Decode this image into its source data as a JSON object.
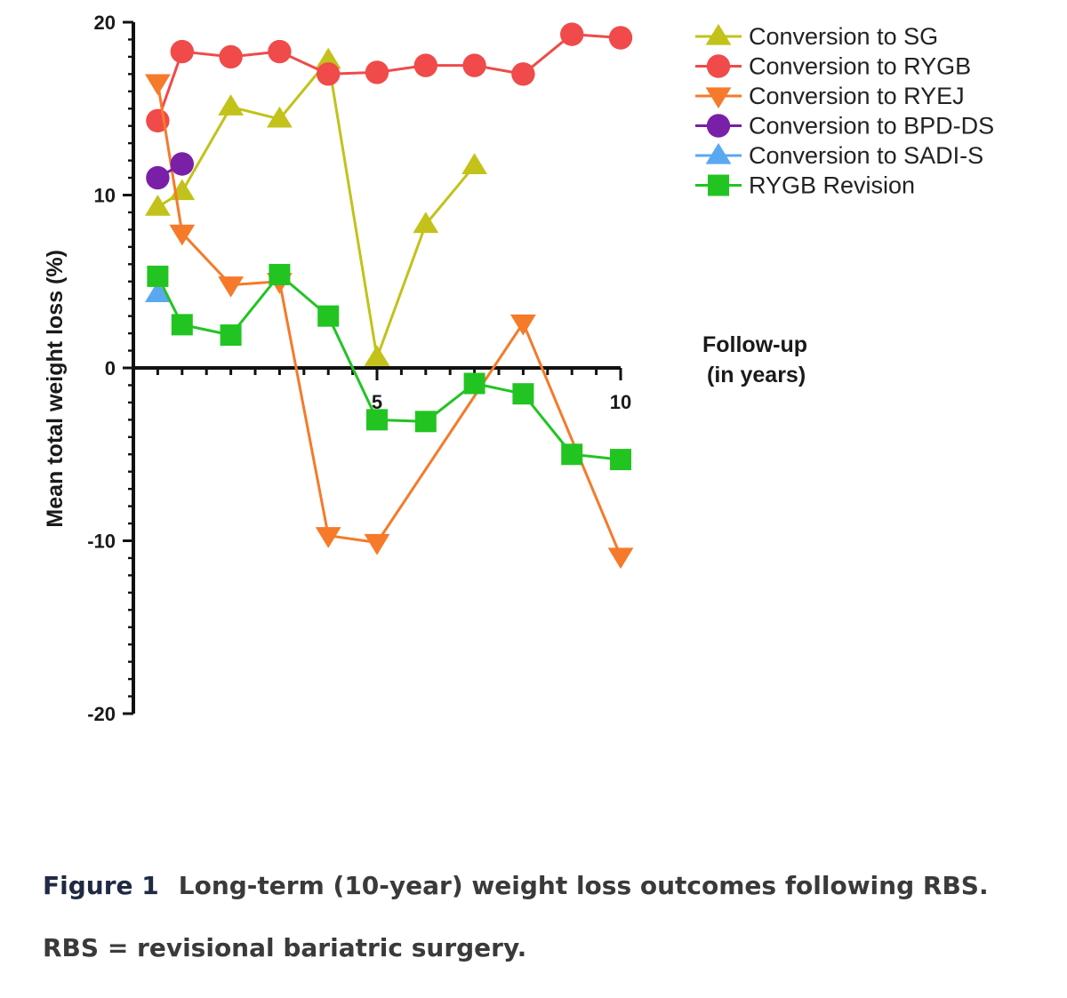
{
  "chart_data": {
    "type": "line",
    "title": "",
    "ylabel": "Mean total weight loss (%)",
    "xlabel": "Follow-up\n(in years)",
    "xlim": [
      0,
      10
    ],
    "ylim": [
      -20,
      20
    ],
    "x_ticks": [
      5,
      10
    ],
    "y_ticks": [
      20,
      10,
      0,
      -10,
      -20
    ],
    "grid": false,
    "legend_position": "top-right",
    "series": [
      {
        "name": "Conversion to SG",
        "marker": "triangle-up",
        "color": "#c2c21a",
        "x": [
          0.5,
          1,
          2,
          3,
          4,
          5,
          6,
          7
        ],
        "y": [
          9.3,
          10.2,
          15.1,
          14.4,
          17.8,
          0.6,
          8.3,
          11.7
        ]
      },
      {
        "name": "Conversion to RYGB",
        "marker": "circle",
        "color": "#f04a4a",
        "x": [
          0.5,
          1,
          2,
          3,
          4,
          5,
          6,
          7,
          8,
          9,
          10
        ],
        "y": [
          14.3,
          18.3,
          18.0,
          18.3,
          17.0,
          17.1,
          17.5,
          17.5,
          17.0,
          19.3,
          19.1
        ]
      },
      {
        "name": "Conversion to RYEJ",
        "marker": "triangle-down",
        "color": "#f57a2a",
        "x": [
          0.5,
          1,
          2,
          3,
          4,
          5,
          8,
          10
        ],
        "y": [
          16.5,
          7.8,
          4.8,
          5.0,
          -9.7,
          -10.1,
          2.6,
          -10.9
        ]
      },
      {
        "name": "Conversion to BPD-DS",
        "marker": "circle",
        "color": "#7a1fa8",
        "x": [
          0.5,
          1
        ],
        "y": [
          11.0,
          11.8
        ]
      },
      {
        "name": "Conversion to SADI-S",
        "marker": "triangle-up",
        "color": "#5aa8f0",
        "x": [
          0.5
        ],
        "y": [
          4.3
        ]
      },
      {
        "name": "RYGB Revision",
        "marker": "square",
        "color": "#22c422",
        "x": [
          0.5,
          1,
          2,
          3,
          4,
          5,
          6,
          7,
          8,
          9,
          10
        ],
        "y": [
          5.3,
          2.5,
          1.9,
          5.4,
          3.0,
          -3.0,
          -3.1,
          -0.9,
          -1.5,
          -5.0,
          -5.3
        ]
      }
    ]
  },
  "caption": {
    "label": "Figure 1",
    "text": "Long-term (10-year) weight loss outcomes following RBS. RBS = revisional bariatric surgery."
  }
}
